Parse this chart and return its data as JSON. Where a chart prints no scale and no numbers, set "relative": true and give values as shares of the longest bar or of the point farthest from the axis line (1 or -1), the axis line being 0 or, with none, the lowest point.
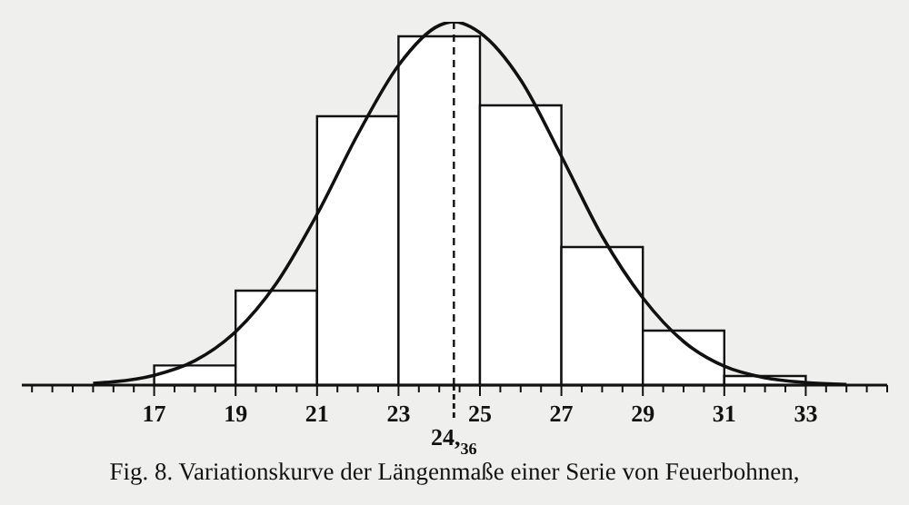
{
  "chart_data": {
    "type": "histogram",
    "title": "Fig. 8.  Variationskurve der Längenmaße einer Serie von Feuerbohnen,",
    "relative": true,
    "bins": [
      17,
      19,
      21,
      23,
      25,
      27,
      29,
      31,
      33
    ],
    "values": [
      0.054,
      0.26,
      0.74,
      0.96,
      0.77,
      0.38,
      0.15,
      0.025
    ],
    "color": "#ffffff",
    "series": [
      {
        "type": "line",
        "color": "#111111",
        "x": [
          15.5,
          16,
          17,
          18,
          19,
          20,
          21,
          22,
          23,
          24,
          24.36,
          25,
          26,
          27,
          28,
          29,
          30,
          31,
          32,
          33,
          34
        ],
        "values": [
          0.005,
          0.009,
          0.027,
          0.067,
          0.147,
          0.28,
          0.47,
          0.69,
          0.88,
          0.99,
          1,
          0.97,
          0.84,
          0.63,
          0.41,
          0.24,
          0.12,
          0.052,
          0.02,
          0.007,
          0.002
        ]
      }
    ],
    "xlim": [
      13.75,
      35
    ],
    "xticks": [
      {
        "value": 14,
        "label": null
      },
      {
        "value": 14.5,
        "label": null
      },
      {
        "value": 15,
        "label": null
      },
      {
        "value": 15.5,
        "label": null
      },
      {
        "value": 16,
        "label": null
      },
      {
        "value": 16.5,
        "label": null
      },
      17,
      {
        "value": 17.5,
        "label": null
      },
      {
        "value": 18,
        "label": null
      },
      {
        "value": 18.5,
        "label": null
      },
      19,
      {
        "value": 19.5,
        "label": null
      },
      {
        "value": 20,
        "label": null
      },
      {
        "value": 20.5,
        "label": null
      },
      21,
      {
        "value": 21.5,
        "label": null
      },
      {
        "value": 22,
        "label": null
      },
      {
        "value": 22.5,
        "label": null
      },
      23,
      {
        "value": 23.5,
        "label": null
      },
      {
        "value": 24,
        "label": null
      },
      {
        "value": 24.5,
        "label": null
      },
      25,
      {
        "value": 25.5,
        "label": null
      },
      {
        "value": 26,
        "label": null
      },
      {
        "value": 26.5,
        "label": null
      },
      27,
      {
        "value": 27.5,
        "label": null
      },
      {
        "value": 28,
        "label": null
      },
      {
        "value": 28.5,
        "label": null
      },
      29,
      {
        "value": 29.5,
        "label": null
      },
      {
        "value": 30,
        "label": null
      },
      {
        "value": 30.5,
        "label": null
      },
      31,
      {
        "value": 31.5,
        "label": null
      },
      {
        "value": 32,
        "label": null
      },
      {
        "value": 32.5,
        "label": null
      },
      33,
      {
        "value": 33.5,
        "label": null
      },
      {
        "value": 34,
        "label": null
      },
      {
        "value": 34.5,
        "label": null
      },
      {
        "value": 35,
        "label": null
      }
    ],
    "ref_lines": [
      {
        "axis": "x",
        "value": 24.36,
        "label": "24,$_{36}$",
        "line_style": "dashed",
        "color": "#111111"
      }
    ],
    "marker": "none",
    "line_style": "solid",
    "tick_labels": "x"
  }
}
